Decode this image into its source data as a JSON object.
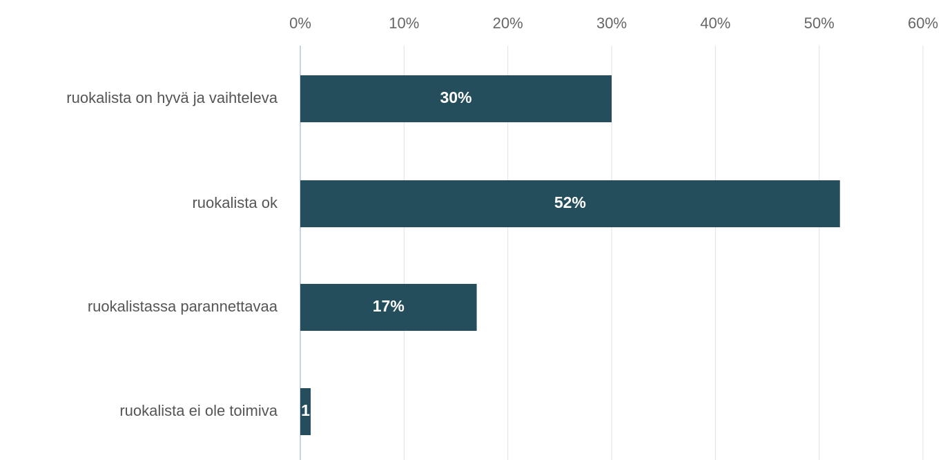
{
  "chart_data": {
    "type": "bar",
    "orientation": "horizontal",
    "categories": [
      "ruokalista on hyvä ja vaihteleva",
      "ruokalista ok",
      "ruokalistassa parannettavaa",
      "ruokalista ei ole toimiva"
    ],
    "values": [
      30,
      52,
      17,
      1
    ],
    "data_labels": [
      "30%",
      "52%",
      "17%",
      "1"
    ],
    "xlim": [
      0,
      60
    ],
    "x_ticks": [
      0,
      10,
      20,
      30,
      40,
      50,
      60
    ],
    "x_tick_labels": [
      "0%",
      "10%",
      "20%",
      "30%",
      "40%",
      "50%",
      "60%"
    ],
    "title": "",
    "xlabel": "",
    "ylabel": "",
    "x_axis_position": "top",
    "grid": true,
    "legend": "none",
    "bar_color": "#244e5c"
  }
}
